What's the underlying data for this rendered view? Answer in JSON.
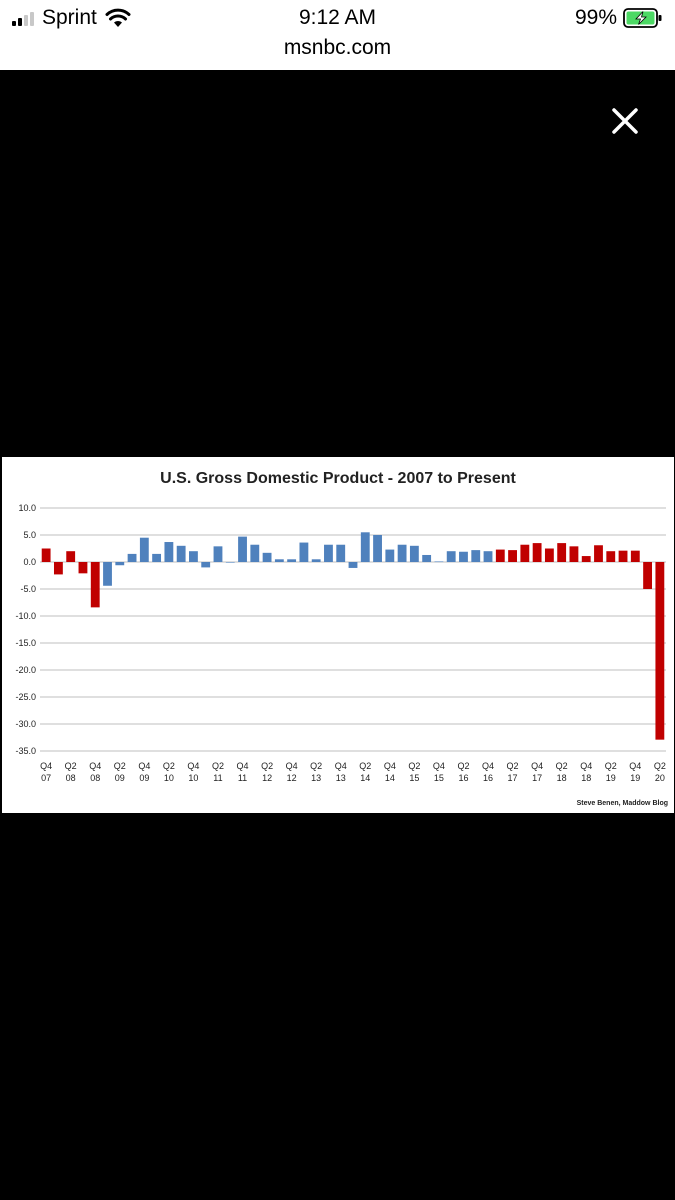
{
  "status": {
    "carrier": "Sprint",
    "time": "9:12 AM",
    "battery": "99%",
    "url": "msnbc.com"
  },
  "icons": {
    "signal": "signal-bars-icon",
    "wifi": "wifi-icon",
    "battery": "battery-charging-icon",
    "close": "close-icon"
  },
  "colors": {
    "red": "#c00000",
    "blue": "#4f81bd",
    "battery_green": "#4cd964"
  },
  "chart_data": {
    "type": "bar",
    "title": "U.S. Gross Domestic Product - 2007 to Present",
    "credit": "Steve Benen, Maddow Blog",
    "ylim": [
      -35,
      10
    ],
    "yticks": [
      "10.0",
      "5.0",
      "0.0",
      "-5.0",
      "-10.0",
      "-15.0",
      "-20.0",
      "-25.0",
      "-30.0",
      "-35.0"
    ],
    "ytick_values": [
      10,
      5,
      0,
      -5,
      -10,
      -15,
      -20,
      -25,
      -30,
      -35
    ],
    "grid": true,
    "xtick_labels": [
      [
        "Q4",
        "07"
      ],
      [
        "Q2",
        "08"
      ],
      [
        "Q4",
        "08"
      ],
      [
        "Q2",
        "09"
      ],
      [
        "Q4",
        "09"
      ],
      [
        "Q2",
        "10"
      ],
      [
        "Q4",
        "10"
      ],
      [
        "Q2",
        "11"
      ],
      [
        "Q4",
        "11"
      ],
      [
        "Q2",
        "12"
      ],
      [
        "Q4",
        "12"
      ],
      [
        "Q2",
        "13"
      ],
      [
        "Q4",
        "13"
      ],
      [
        "Q2",
        "14"
      ],
      [
        "Q4",
        "14"
      ],
      [
        "Q2",
        "15"
      ],
      [
        "Q4",
        "15"
      ],
      [
        "Q2",
        "16"
      ],
      [
        "Q4",
        "16"
      ],
      [
        "Q2",
        "17"
      ],
      [
        "Q4",
        "17"
      ],
      [
        "Q2",
        "18"
      ],
      [
        "Q4",
        "18"
      ],
      [
        "Q2",
        "19"
      ],
      [
        "Q4",
        "19"
      ],
      [
        "Q2",
        "20"
      ]
    ],
    "values": [
      2.5,
      -2.3,
      2.0,
      -2.1,
      -8.4,
      -4.4,
      -0.6,
      1.5,
      4.5,
      1.5,
      3.7,
      3.0,
      2.0,
      -1.0,
      2.9,
      -0.1,
      4.7,
      3.2,
      1.7,
      0.5,
      0.5,
      3.6,
      0.5,
      3.2,
      3.2,
      -1.1,
      5.5,
      5.0,
      2.3,
      3.2,
      3.0,
      1.3,
      0.1,
      2.0,
      1.9,
      2.2,
      2.0,
      2.3,
      2.2,
      3.2,
      3.5,
      2.5,
      3.5,
      2.9,
      1.1,
      3.1,
      2.0,
      2.1,
      2.1,
      -5.0,
      -32.9
    ],
    "bar_colors": [
      "red",
      "red",
      "red",
      "red",
      "red",
      "blue",
      "blue",
      "blue",
      "blue",
      "blue",
      "blue",
      "blue",
      "blue",
      "blue",
      "blue",
      "blue",
      "blue",
      "blue",
      "blue",
      "blue",
      "blue",
      "blue",
      "blue",
      "blue",
      "blue",
      "blue",
      "blue",
      "blue",
      "blue",
      "blue",
      "blue",
      "blue",
      "blue",
      "blue",
      "blue",
      "blue",
      "blue",
      "red",
      "red",
      "red",
      "red",
      "red",
      "red",
      "red",
      "red",
      "red",
      "red",
      "red",
      "red",
      "red",
      "red"
    ]
  }
}
